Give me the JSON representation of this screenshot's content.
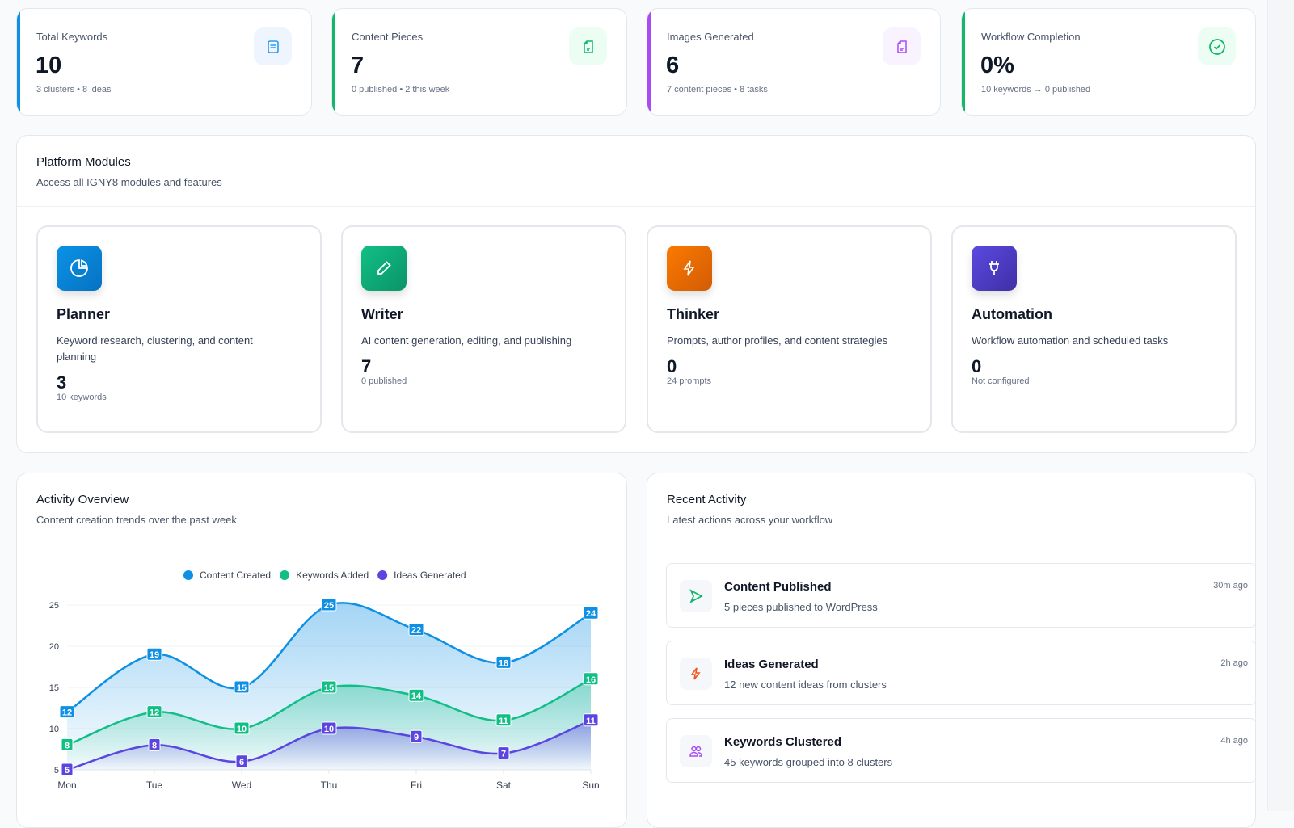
{
  "stats": [
    {
      "label": "Total Keywords",
      "value": "10",
      "sub": "3 clusters • 8 ideas",
      "icon": "list-icon",
      "color": "#0e90e4",
      "bg": "#eef5ff"
    },
    {
      "label": "Content Pieces",
      "value": "7",
      "sub": "0 published • 2 this week",
      "icon": "document-icon",
      "color": "#12b76a",
      "bg": "#ecfdf3"
    },
    {
      "label": "Images Generated",
      "value": "6",
      "sub": "7 content pieces • 8 tasks",
      "icon": "document-icon",
      "color": "#a84cf5",
      "bg": "#f9f2ff"
    },
    {
      "label": "Workflow Completion",
      "value": "0%",
      "sub": "10 keywords → 0 published",
      "icon": "check-circle-icon",
      "color": "#12b76a",
      "bg": "#ecfdf3"
    }
  ],
  "modules": {
    "title": "Platform Modules",
    "subtitle": "Access all IGNY8 modules and features",
    "items": [
      {
        "name": "Planner",
        "desc": "Keyword research, clustering, and content planning",
        "count": "3",
        "sub": "10 keywords",
        "icon": "pie-chart-icon",
        "grad": [
          "#0b93e6",
          "#0672c2"
        ]
      },
      {
        "name": "Writer",
        "desc": "AI content generation, editing, and publishing",
        "count": "7",
        "sub": "0 published",
        "icon": "pencil-icon",
        "grad": [
          "#12bf86",
          "#0a9467"
        ]
      },
      {
        "name": "Thinker",
        "desc": "Prompts, author profiles, and content strategies",
        "count": "0",
        "sub": "24 prompts",
        "icon": "bolt-icon",
        "grad": [
          "#fb7a00",
          "#d25c05"
        ]
      },
      {
        "name": "Automation",
        "desc": "Workflow automation and scheduled tasks",
        "count": "0",
        "sub": "Not configured",
        "icon": "plug-icon",
        "grad": [
          "#5b4ae0",
          "#3f2fa6"
        ]
      }
    ]
  },
  "activity_overview": {
    "title": "Activity Overview",
    "subtitle": "Content creation trends over the past week"
  },
  "chart_data": {
    "type": "area",
    "categories": [
      "Mon",
      "Tue",
      "Wed",
      "Thu",
      "Fri",
      "Sat",
      "Sun"
    ],
    "ylim": [
      5,
      25
    ],
    "yticks": [
      5,
      10,
      15,
      20,
      25
    ],
    "legend": "top-center",
    "grid": true,
    "series": [
      {
        "name": "Content Created",
        "color": "#0e90e4",
        "values": [
          12,
          19,
          15,
          25,
          22,
          18,
          24
        ]
      },
      {
        "name": "Keywords Added",
        "color": "#11bf86",
        "values": [
          8,
          12,
          10,
          15,
          14,
          11,
          16
        ]
      },
      {
        "name": "Ideas Generated",
        "color": "#5b45e0",
        "values": [
          5,
          8,
          6,
          10,
          9,
          7,
          11
        ]
      }
    ]
  },
  "recent": {
    "title": "Recent Activity",
    "subtitle": "Latest actions across your workflow",
    "items": [
      {
        "title": "Content Published",
        "desc": "5 pieces published to WordPress",
        "time": "30m ago",
        "icon": "send-icon"
      },
      {
        "title": "Ideas Generated",
        "desc": "12 new content ideas from clusters",
        "time": "2h ago",
        "icon": "bolt-icon"
      },
      {
        "title": "Keywords Clustered",
        "desc": "45 keywords grouped into 8 clusters",
        "time": "4h ago",
        "icon": "users-icon"
      }
    ]
  }
}
